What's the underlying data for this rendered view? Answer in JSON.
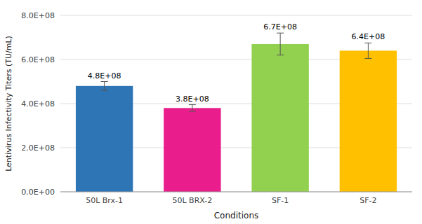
{
  "chart_data": {
    "type": "bar",
    "categories": [
      "50L Brx-1",
      "50L BRX-2",
      "SF-1",
      "SF-2"
    ],
    "values": [
      480000000,
      380000000,
      670000000,
      640000000
    ],
    "errors": [
      20000000,
      15000000,
      50000000,
      35000000
    ],
    "value_labels": [
      "4.8E+08",
      "3.8E+08",
      "6.7E+08",
      "6.4E+08"
    ],
    "colors": [
      "#2e75b6",
      "#e91e8c",
      "#92d050",
      "#ffc000"
    ],
    "xlabel": "Conditions",
    "ylabel": "Lentivirus Infectivity Titers (TU/mL)",
    "ylim": [
      0,
      800000000
    ],
    "yticks": [
      {
        "value": 0,
        "label": "0.0E+00"
      },
      {
        "value": 200000000,
        "label": "2.0E+08"
      },
      {
        "value": 400000000,
        "label": "4.0E+08"
      },
      {
        "value": 600000000,
        "label": "6.0E+08"
      },
      {
        "value": 800000000,
        "label": "8.0E+08"
      }
    ],
    "grid": true,
    "data_labels": true
  }
}
